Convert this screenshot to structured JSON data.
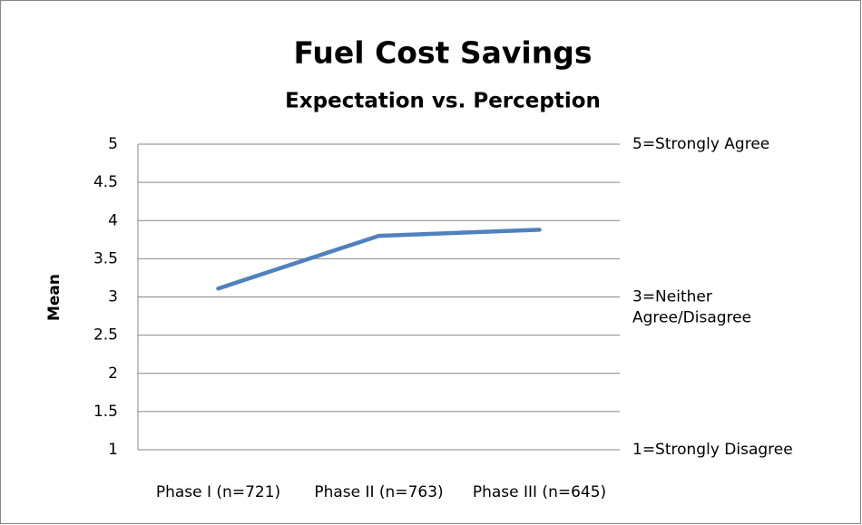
{
  "chart_data": {
    "type": "line",
    "title": "Fuel Cost Savings",
    "subtitle": "Expectation vs. Perception",
    "y_label": "Mean",
    "categories": [
      "Phase I (n=721)",
      "Phase II (n=763)",
      "Phase III (n=645)"
    ],
    "series": [
      {
        "name": "Mean",
        "color": "#4f81bd",
        "values": [
          3.11,
          3.8,
          3.88
        ]
      }
    ],
    "ylim": [
      1,
      5
    ],
    "yticks": [
      1,
      1.5,
      2,
      2.5,
      3,
      3.5,
      4,
      4.5,
      5
    ],
    "grid": true,
    "annotations": [
      {
        "value": 5,
        "label": "5=Strongly Agree"
      },
      {
        "value": 3,
        "label": "3=Neither Agree/Disagree"
      },
      {
        "value": 1,
        "label": "1=Strongly Disagree"
      }
    ]
  }
}
